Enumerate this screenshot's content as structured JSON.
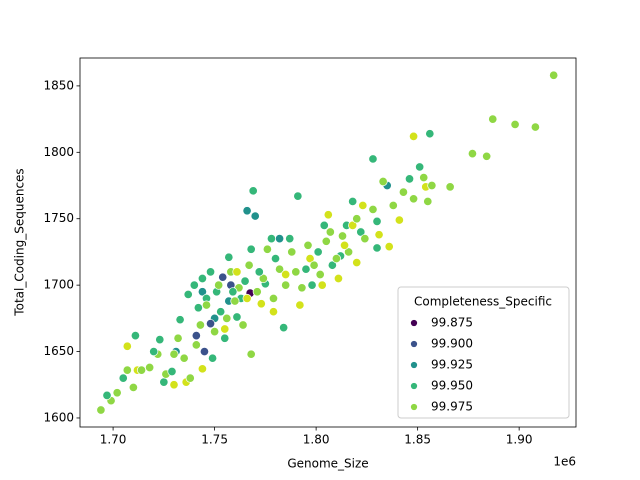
{
  "chart_data": {
    "type": "scatter",
    "x_label": "Genome_Size",
    "y_label": "Total_Coding_Sequences",
    "x_offset_label": "1e6",
    "xlim": [
      1683700,
      1928000
    ],
    "ylim": [
      1593.2,
      1871
    ],
    "xticks": [
      {
        "value": 1700000,
        "label": "1.70"
      },
      {
        "value": 1750000,
        "label": "1.75"
      },
      {
        "value": 1800000,
        "label": "1.80"
      },
      {
        "value": 1850000,
        "label": "1.85"
      },
      {
        "value": 1900000,
        "label": "1.90"
      }
    ],
    "yticks": [
      1600,
      1650,
      1700,
      1750,
      1800,
      1850
    ],
    "grid": false,
    "legend": {
      "title": "Completeness_Specific",
      "position": "lower right"
    },
    "series": [
      {
        "name": "99.875",
        "color": "#440154",
        "x": [
          1767500
        ],
        "values": [
          1694
        ]
      },
      {
        "name": {
          "value": 99.9,
          "label": "99.900"
        },
        "color": "#3b528b",
        "x": [
          1754000,
          1748000,
          1741000,
          1758000,
          1745000
        ],
        "values": [
          1706,
          1671,
          1662,
          1700,
          1650
        ]
      },
      {
        "name": "99.925",
        "color": "#21918c",
        "x": [
          1770000,
          1766000,
          1731000,
          1757000,
          1750000,
          1782000,
          1835000,
          1744000
        ],
        "values": [
          1752,
          1756,
          1650,
          1688,
          1675,
          1735,
          1775,
          1695
        ]
      },
      {
        "name": {
          "value": 99.95,
          "label": "99.950"
        },
        "color": "#35b779",
        "x": [
          1697000,
          1705000,
          1711000,
          1720000,
          1723000,
          1725000,
          1729000,
          1733000,
          1737000,
          1740000,
          1742000,
          1744000,
          1746000,
          1748000,
          1749000,
          1751000,
          1753000,
          1755000,
          1757000,
          1759000,
          1761000,
          1763000,
          1765000,
          1768000,
          1769000,
          1772000,
          1775000,
          1778000,
          1780000,
          1784000,
          1787000,
          1791000,
          1795000,
          1798000,
          1801000,
          1804000,
          1808000,
          1812000,
          1815000,
          1818000,
          1822000,
          1828000,
          1830000,
          1846000,
          1851000,
          1856000,
          1830000
        ],
        "values": [
          1617,
          1630,
          1662,
          1650,
          1659,
          1627,
          1635,
          1674,
          1693,
          1700,
          1683,
          1705,
          1690,
          1710,
          1645,
          1695,
          1680,
          1660,
          1721,
          1695,
          1676,
          1690,
          1703,
          1727,
          1771,
          1710,
          1701,
          1735,
          1720,
          1668,
          1735,
          1767,
          1712,
          1700,
          1725,
          1745,
          1715,
          1722,
          1745,
          1763,
          1740,
          1795,
          1748,
          1780,
          1789,
          1814,
          1728
        ]
      },
      {
        "name": "99.975",
        "color": "#8fd744",
        "x": [
          1694000,
          1699000,
          1702000,
          1707000,
          1710000,
          1714000,
          1718000,
          1722000,
          1726000,
          1730000,
          1732000,
          1735000,
          1738000,
          1741000,
          1743000,
          1746000,
          1750000,
          1752000,
          1756000,
          1758000,
          1760000,
          1762000,
          1764000,
          1767000,
          1768000,
          1771000,
          1774000,
          1776000,
          1779000,
          1782000,
          1785000,
          1788000,
          1790000,
          1793000,
          1796000,
          1799000,
          1802000,
          1805000,
          1807000,
          1810000,
          1813000,
          1816000,
          1820000,
          1824000,
          1828000,
          1833000,
          1838000,
          1843000,
          1848000,
          1853000,
          1857000,
          1866000,
          1884000,
          1887000,
          1898000,
          1908000,
          1917000,
          1877000,
          1855000
        ],
        "values": [
          1606,
          1613,
          1619,
          1636,
          1623,
          1636,
          1638,
          1648,
          1633,
          1648,
          1660,
          1645,
          1630,
          1655,
          1670,
          1685,
          1665,
          1700,
          1675,
          1710,
          1688,
          1698,
          1670,
          1715,
          1648,
          1695,
          1705,
          1727,
          1690,
          1712,
          1700,
          1725,
          1710,
          1698,
          1730,
          1715,
          1708,
          1733,
          1740,
          1720,
          1737,
          1725,
          1750,
          1735,
          1757,
          1778,
          1760,
          1770,
          1765,
          1781,
          1775,
          1774,
          1797,
          1825,
          1821,
          1819,
          1858,
          1799,
          1763
        ]
      },
      {
        "color": "#d3e21b",
        "x": [
          1707000,
          1712000,
          1730000,
          1736000,
          1744000,
          1755000,
          1761000,
          1766000,
          1773000,
          1779000,
          1785000,
          1792000,
          1797000,
          1803000,
          1806000,
          1811000,
          1814000,
          1818000,
          1823000,
          1831000,
          1836000,
          1841000,
          1848000,
          1854000,
          1820000
        ],
        "values": [
          1654,
          1636,
          1625,
          1627,
          1637,
          1667,
          1710,
          1690,
          1686,
          1680,
          1708,
          1685,
          1720,
          1700,
          1753,
          1705,
          1730,
          1745,
          1760,
          1738,
          1729,
          1749,
          1812,
          1774,
          1717
        ]
      }
    ]
  }
}
